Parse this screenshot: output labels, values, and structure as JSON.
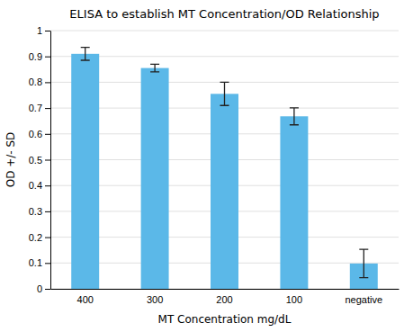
{
  "chart_data": {
    "type": "bar",
    "title": "ELISA to establish MT Concentration/OD Relationship",
    "xlabel": "MT Concentration mg/dL",
    "ylabel": "OD +/- SD",
    "categories": [
      "400",
      "300",
      "200",
      "100",
      "negative"
    ],
    "values": [
      0.91,
      0.855,
      0.755,
      0.668,
      0.098
    ],
    "errors": [
      0.025,
      0.015,
      0.045,
      0.033,
      0.055
    ],
    "color": "#5BB8E8",
    "ylim": [
      0,
      1
    ],
    "yticks": [
      0,
      0.1,
      0.2,
      0.3,
      0.4,
      0.5,
      0.6,
      0.7,
      0.8,
      0.9,
      1
    ],
    "grid": true
  }
}
